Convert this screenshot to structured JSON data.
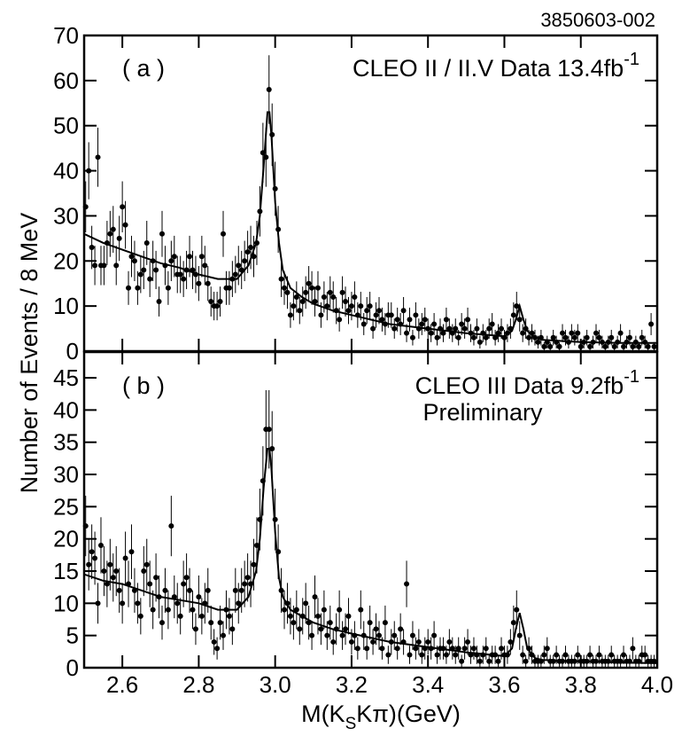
{
  "figure": {
    "id": "3850603-002",
    "y_label": "Number of Events / 8 MeV",
    "x_label": [
      "M(K",
      "S",
      "Kπ)(GeV)"
    ]
  },
  "chart_data": [
    {
      "type": "scatter",
      "label": "( a )",
      "title": "CLEO II / II.V Data 13.4fb",
      "title_superscript": "-1",
      "color": "#000000",
      "xlim": [
        2.5,
        4.0
      ],
      "ylim": [
        0,
        70
      ],
      "yticks": [
        0,
        10,
        20,
        30,
        40,
        50,
        60,
        70
      ],
      "x": [
        2.504,
        2.512,
        2.52,
        2.528,
        2.536,
        2.544,
        2.552,
        2.56,
        2.568,
        2.576,
        2.584,
        2.592,
        2.6,
        2.608,
        2.616,
        2.624,
        2.632,
        2.64,
        2.648,
        2.656,
        2.664,
        2.672,
        2.68,
        2.688,
        2.696,
        2.704,
        2.712,
        2.72,
        2.728,
        2.736,
        2.744,
        2.752,
        2.76,
        2.768,
        2.776,
        2.784,
        2.792,
        2.8,
        2.808,
        2.816,
        2.824,
        2.832,
        2.84,
        2.848,
        2.856,
        2.864,
        2.872,
        2.88,
        2.888,
        2.896,
        2.904,
        2.912,
        2.92,
        2.928,
        2.936,
        2.944,
        2.952,
        2.96,
        2.968,
        2.976,
        2.984,
        2.992,
        3.0,
        3.008,
        3.016,
        3.024,
        3.032,
        3.04,
        3.048,
        3.056,
        3.064,
        3.072,
        3.08,
        3.088,
        3.096,
        3.104,
        3.112,
        3.12,
        3.128,
        3.136,
        3.144,
        3.152,
        3.16,
        3.168,
        3.176,
        3.184,
        3.192,
        3.2,
        3.208,
        3.216,
        3.224,
        3.232,
        3.24,
        3.248,
        3.256,
        3.264,
        3.272,
        3.28,
        3.288,
        3.296,
        3.304,
        3.312,
        3.32,
        3.328,
        3.336,
        3.344,
        3.352,
        3.36,
        3.368,
        3.376,
        3.384,
        3.392,
        3.4,
        3.408,
        3.416,
        3.424,
        3.432,
        3.44,
        3.448,
        3.456,
        3.464,
        3.472,
        3.48,
        3.488,
        3.496,
        3.504,
        3.512,
        3.52,
        3.528,
        3.536,
        3.544,
        3.552,
        3.56,
        3.568,
        3.576,
        3.584,
        3.592,
        3.6,
        3.608,
        3.616,
        3.624,
        3.632,
        3.64,
        3.648,
        3.656,
        3.664,
        3.672,
        3.68,
        3.688,
        3.696,
        3.704,
        3.712,
        3.72,
        3.728,
        3.736,
        3.744,
        3.752,
        3.76,
        3.768,
        3.776,
        3.784,
        3.792,
        3.8,
        3.808,
        3.816,
        3.824,
        3.832,
        3.84,
        3.848,
        3.856,
        3.864,
        3.872,
        3.88,
        3.888,
        3.896,
        3.904,
        3.912,
        3.92,
        3.928,
        3.936,
        3.944,
        3.952,
        3.96,
        3.968,
        3.976,
        3.984,
        3.992
      ],
      "values": [
        32,
        40,
        23,
        19,
        43,
        19,
        19,
        24,
        26,
        27,
        19,
        25,
        32,
        28,
        14,
        21,
        20,
        14,
        17,
        18,
        24,
        16,
        20,
        18,
        11,
        26,
        19,
        14,
        20,
        21,
        17,
        17,
        16,
        18,
        21,
        18,
        17,
        15,
        21,
        19,
        15,
        11,
        10,
        10,
        11,
        26,
        14,
        14,
        16,
        17,
        19,
        18,
        20,
        22,
        23,
        21,
        24,
        31,
        44,
        43,
        58,
        48,
        36,
        27,
        16,
        14,
        13,
        8,
        10,
        12,
        9,
        11,
        13,
        15,
        14,
        11,
        14,
        8,
        12,
        10,
        13,
        12,
        9,
        7,
        13,
        11,
        9,
        10,
        12,
        8,
        10,
        6,
        9,
        10,
        5,
        8,
        9,
        7,
        6,
        8,
        8,
        5,
        7,
        6,
        9,
        4,
        7,
        3,
        8,
        5,
        6,
        7,
        5,
        4,
        6,
        3,
        5,
        4,
        7,
        5,
        4,
        5,
        3,
        6,
        5,
        7,
        4,
        3,
        5,
        2,
        4,
        3,
        5,
        6,
        3,
        4,
        5,
        3,
        4,
        5,
        8,
        10,
        7,
        4,
        5,
        3,
        4,
        3,
        2,
        3,
        1,
        2,
        1,
        3,
        2,
        1,
        4,
        3,
        2,
        4,
        3,
        4,
        1,
        2,
        3,
        1,
        2,
        4,
        3,
        2,
        1,
        2,
        3,
        1,
        2,
        4,
        1,
        2,
        3,
        1,
        2,
        1,
        3,
        2,
        1,
        6,
        1
      ],
      "fit": {
        "x": [
          2.5,
          2.55,
          2.6,
          2.65,
          2.7,
          2.75,
          2.8,
          2.85,
          2.9,
          2.93,
          2.95,
          2.96,
          2.97,
          2.98,
          2.985,
          2.99,
          3.0,
          3.01,
          3.02,
          3.04,
          3.07,
          3.1,
          3.15,
          3.2,
          3.3,
          3.4,
          3.5,
          3.6,
          3.62,
          3.63,
          3.64,
          3.65,
          3.66,
          3.68,
          3.7,
          3.8,
          3.9,
          4.0
        ],
        "values": [
          26,
          24,
          22.5,
          21,
          19.5,
          18.5,
          17,
          16,
          16,
          19,
          24,
          30,
          41,
          53,
          53,
          48,
          33,
          24,
          18,
          14,
          12,
          10.5,
          9,
          8,
          6,
          5,
          4,
          3.3,
          4.5,
          7,
          10,
          7,
          4.5,
          3,
          2.5,
          2,
          1.8,
          1.8
        ]
      }
    },
    {
      "type": "scatter",
      "label": "( b )",
      "title": "CLEO III Data 9.2fb",
      "title_superscript": "-1",
      "subtitle": "Preliminary",
      "color": "#000000",
      "xlim": [
        2.5,
        4.0
      ],
      "ylim": [
        0,
        49
      ],
      "yticks": [
        0,
        5,
        10,
        15,
        20,
        25,
        30,
        35,
        40,
        45
      ],
      "xticks": [
        2.6,
        2.8,
        {
          "value": 3.0,
          "label": "3.0"
        },
        3.2,
        3.4,
        3.6,
        3.8,
        {
          "value": 4.0,
          "label": "4.0"
        }
      ],
      "x": [
        2.504,
        2.512,
        2.52,
        2.528,
        2.536,
        2.544,
        2.552,
        2.56,
        2.568,
        2.576,
        2.584,
        2.592,
        2.6,
        2.608,
        2.616,
        2.624,
        2.632,
        2.64,
        2.648,
        2.656,
        2.664,
        2.672,
        2.68,
        2.688,
        2.696,
        2.704,
        2.712,
        2.72,
        2.728,
        2.736,
        2.744,
        2.752,
        2.76,
        2.768,
        2.776,
        2.784,
        2.792,
        2.8,
        2.808,
        2.816,
        2.824,
        2.832,
        2.84,
        2.848,
        2.856,
        2.864,
        2.872,
        2.88,
        2.888,
        2.896,
        2.904,
        2.912,
        2.92,
        2.928,
        2.936,
        2.944,
        2.952,
        2.96,
        2.968,
        2.976,
        2.984,
        2.992,
        3.0,
        3.008,
        3.016,
        3.024,
        3.032,
        3.04,
        3.048,
        3.056,
        3.064,
        3.072,
        3.08,
        3.088,
        3.096,
        3.104,
        3.112,
        3.12,
        3.128,
        3.136,
        3.144,
        3.152,
        3.16,
        3.168,
        3.176,
        3.184,
        3.192,
        3.2,
        3.208,
        3.216,
        3.224,
        3.232,
        3.24,
        3.248,
        3.256,
        3.264,
        3.272,
        3.28,
        3.288,
        3.296,
        3.304,
        3.312,
        3.32,
        3.328,
        3.336,
        3.344,
        3.352,
        3.36,
        3.368,
        3.376,
        3.384,
        3.392,
        3.4,
        3.408,
        3.416,
        3.424,
        3.432,
        3.44,
        3.448,
        3.456,
        3.464,
        3.472,
        3.48,
        3.488,
        3.496,
        3.504,
        3.512,
        3.52,
        3.528,
        3.536,
        3.544,
        3.552,
        3.56,
        3.568,
        3.576,
        3.584,
        3.592,
        3.6,
        3.608,
        3.616,
        3.624,
        3.632,
        3.64,
        3.648,
        3.656,
        3.664,
        3.672,
        3.68,
        3.688,
        3.696,
        3.704,
        3.712,
        3.72,
        3.728,
        3.736,
        3.744,
        3.752,
        3.76,
        3.768,
        3.776,
        3.784,
        3.792,
        3.8,
        3.808,
        3.816,
        3.824,
        3.832,
        3.84,
        3.848,
        3.856,
        3.864,
        3.872,
        3.88,
        3.888,
        3.896,
        3.904,
        3.912,
        3.92,
        3.928,
        3.936,
        3.944,
        3.952,
        3.96,
        3.968,
        3.976,
        3.984,
        3.992
      ],
      "values": [
        22,
        16,
        18,
        17,
        10,
        19,
        15,
        13,
        16,
        14,
        15,
        12,
        10,
        17,
        13,
        18,
        12,
        10,
        8,
        15,
        16,
        13,
        9,
        14,
        11,
        7,
        12,
        9,
        22,
        11,
        10,
        8,
        13,
        14,
        12,
        9,
        6,
        11,
        8,
        10,
        12,
        7,
        4,
        3,
        7,
        5,
        9,
        8,
        6,
        12,
        10,
        12,
        13,
        14,
        13,
        16,
        19,
        23,
        29,
        37,
        37,
        34,
        23,
        18,
        12,
        9,
        10,
        8,
        7,
        9,
        6,
        8,
        10,
        7,
        5,
        11,
        8,
        6,
        9,
        5,
        7,
        4,
        6,
        9,
        5,
        6,
        8,
        4,
        5,
        3,
        9,
        5,
        3,
        7,
        4,
        6,
        5,
        3,
        7,
        2,
        4,
        5,
        3,
        6,
        4,
        13,
        2,
        5,
        3,
        4,
        2,
        3,
        4,
        3,
        5,
        2,
        3,
        3,
        2,
        4,
        3,
        2,
        3,
        1,
        3,
        4,
        2,
        3,
        2,
        1,
        2,
        3,
        1,
        2,
        2,
        1,
        3,
        2,
        2,
        4,
        7,
        9,
        5,
        2,
        1,
        3,
        2,
        1,
        1,
        1,
        2,
        3,
        1,
        1,
        2,
        1,
        1,
        2,
        1,
        1,
        1,
        2,
        1,
        1,
        1,
        2,
        1,
        1,
        2,
        1,
        1,
        1,
        2,
        1,
        1,
        1,
        2,
        1,
        1,
        3,
        1,
        1,
        2,
        2,
        1,
        1,
        1
      ],
      "fit": {
        "x": [
          2.5,
          2.55,
          2.6,
          2.65,
          2.7,
          2.75,
          2.8,
          2.85,
          2.9,
          2.93,
          2.95,
          2.96,
          2.97,
          2.98,
          2.985,
          2.99,
          3.0,
          3.01,
          3.02,
          3.04,
          3.07,
          3.1,
          3.15,
          3.2,
          3.3,
          3.4,
          3.5,
          3.6,
          3.62,
          3.63,
          3.64,
          3.65,
          3.66,
          3.68,
          3.7,
          3.8,
          3.9,
          4.0
        ],
        "values": [
          14.5,
          13.5,
          13,
          12,
          11,
          10.5,
          10,
          9,
          9,
          11,
          15,
          20,
          28,
          34,
          34,
          31,
          21,
          14,
          11,
          9,
          8,
          7,
          6,
          5.3,
          4,
          3.2,
          2.4,
          1.8,
          3,
          6,
          8.5,
          6,
          3,
          1.5,
          1.2,
          1,
          0.8,
          0.7
        ]
      }
    }
  ]
}
